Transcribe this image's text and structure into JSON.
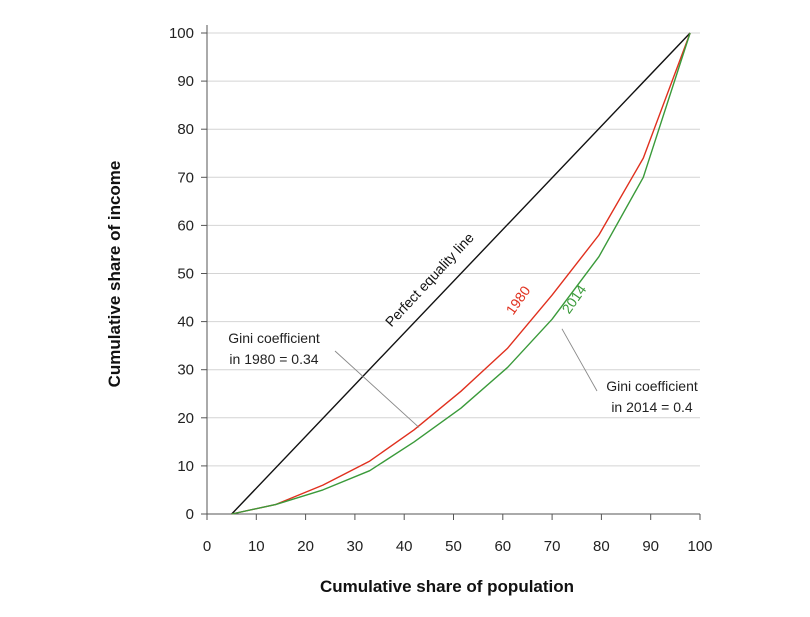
{
  "chart_data": {
    "type": "line",
    "xlabel": "Cumulative share of population",
    "ylabel": "Cumulative share of income",
    "xlim": [
      0,
      100
    ],
    "ylim": [
      0,
      100
    ],
    "x_ticks": [
      "0",
      "10",
      "20",
      "30",
      "40",
      "50",
      "60",
      "70",
      "80",
      "90",
      "100"
    ],
    "y_ticks": [
      "0",
      "10",
      "20",
      "30",
      "40",
      "50",
      "60",
      "70",
      "80",
      "90",
      "100"
    ],
    "grid": "horizontal",
    "series": [
      {
        "name": "Perfect equality line",
        "color": "#111111",
        "x": [
          5,
          98
        ],
        "y": [
          0,
          100
        ]
      },
      {
        "name": "1980",
        "color": "#e0301e",
        "x": [
          5,
          14,
          23.5,
          33,
          42,
          51.5,
          61,
          70,
          79.5,
          88.5,
          98
        ],
        "y": [
          0,
          2,
          6,
          11,
          17.5,
          25.5,
          34.5,
          45.5,
          58,
          74,
          100
        ]
      },
      {
        "name": "2014",
        "color": "#3a9a3a",
        "x": [
          5,
          14,
          23.5,
          33,
          42,
          51.5,
          61,
          70,
          79.5,
          88.5,
          98
        ],
        "y": [
          0,
          2,
          5,
          9,
          15,
          22,
          30.5,
          40.5,
          53.5,
          70,
          100
        ]
      }
    ],
    "annotations": {
      "gini_1980_line1": "Gini coefficient",
      "gini_1980_line2": "in 1980 = 0.34",
      "gini_2014_line1": "Gini coefficient",
      "gini_2014_line2": "in 2014 = 0.4"
    }
  }
}
